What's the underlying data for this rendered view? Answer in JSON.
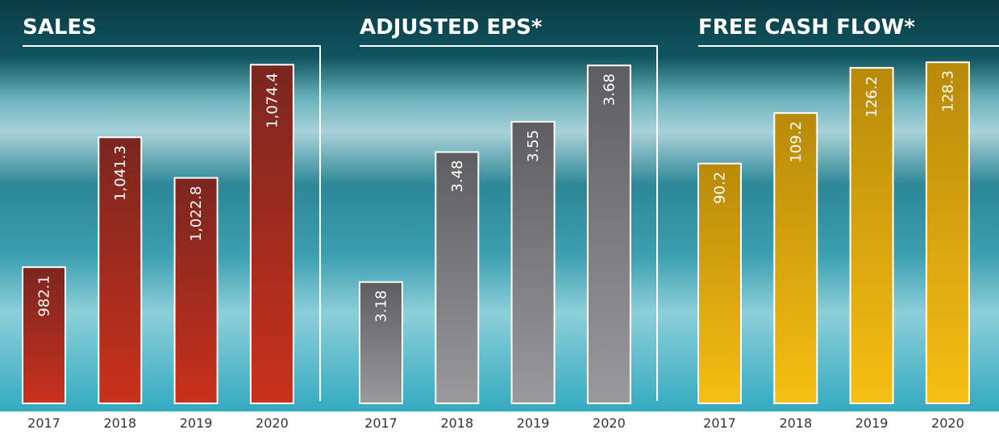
{
  "chart_data": [
    {
      "type": "bar",
      "title": "SALES",
      "categories": [
        "2017",
        "2018",
        "2019",
        "2020"
      ],
      "values": [
        982.1,
        1041.3,
        1022.8,
        1074.4
      ],
      "value_labels": [
        "982.1",
        "1,041.3",
        "1,022.8",
        "1,074.4"
      ],
      "colors": [
        "#7a2620",
        "#c9311b"
      ],
      "ylim": [
        920,
        1080
      ]
    },
    {
      "type": "bar",
      "title": "ADJUSTED EPS*",
      "categories": [
        "2017",
        "2018",
        "2019",
        "2020"
      ],
      "values": [
        3.18,
        3.48,
        3.55,
        3.68
      ],
      "colors": [
        "#5e5e60",
        "#9a9a9c"
      ],
      "ylim": [
        2.9,
        3.71
      ]
    },
    {
      "type": "bar",
      "title": "FREE CASH FLOW*",
      "categories": [
        "2017",
        "2018",
        "2019",
        "2020"
      ],
      "values": [
        90.2,
        109.2,
        126.2,
        128.3
      ],
      "colors": [
        "#b88a0a",
        "#f6bf12"
      ],
      "ylim": [
        0,
        132
      ]
    }
  ]
}
